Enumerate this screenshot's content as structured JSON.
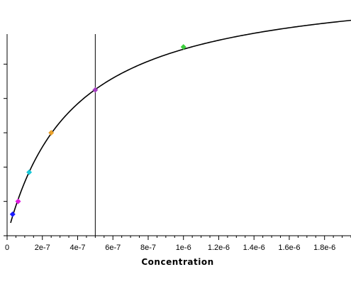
{
  "chart_data": {
    "type": "scatter",
    "title": "",
    "xlabel": "Concentration",
    "ylabel": "",
    "xlim": [
      0,
      1.95e-06
    ],
    "ylim": [
      0,
      1.2
    ],
    "x_ticks": [
      0,
      2e-07,
      4e-07,
      6e-07,
      8e-07,
      1e-06,
      1.2e-06,
      1.4e-06,
      1.6e-06,
      1.8e-06
    ],
    "x_tick_labels": [
      "0",
      "2e-7",
      "4e-7",
      "6e-7",
      "8e-7",
      "1e-6",
      "1.2e-6",
      "1.4e-6",
      "1.6e-6",
      "1.8e-6"
    ],
    "y_ticks": [
      0,
      0.2,
      0.4,
      0.6,
      0.8,
      1.0
    ],
    "y_tick_labels_shown": false,
    "grid": false,
    "legend": "none",
    "series": [
      {
        "values": [
          {
            "x": 3.125e-08,
            "y": 0.125,
            "color": "#1a1aff",
            "marker": "diamond"
          },
          {
            "x": 6.25e-08,
            "y": 0.2,
            "color": "#e01ae0",
            "marker": "diamond"
          },
          {
            "x": 1.25e-07,
            "y": 0.37,
            "color": "#18c8d8",
            "marker": "diamond"
          },
          {
            "x": 2.5e-07,
            "y": 0.6,
            "color": "#e8a02a",
            "marker": "diamond"
          },
          {
            "x": 5e-07,
            "y": 0.85,
            "color": "#a43cc0",
            "marker": "diamond"
          },
          {
            "x": 1e-06,
            "y": 1.1,
            "color": "#3cd03c",
            "marker": "diamond"
          }
        ]
      }
    ],
    "fit_curve": {
      "model": "one-site binding",
      "bmax": 1.5,
      "kd": 3.8e-07,
      "color": "#000000"
    },
    "reference_line": {
      "orientation": "vertical",
      "x": 5e-07,
      "color": "#000000"
    }
  }
}
